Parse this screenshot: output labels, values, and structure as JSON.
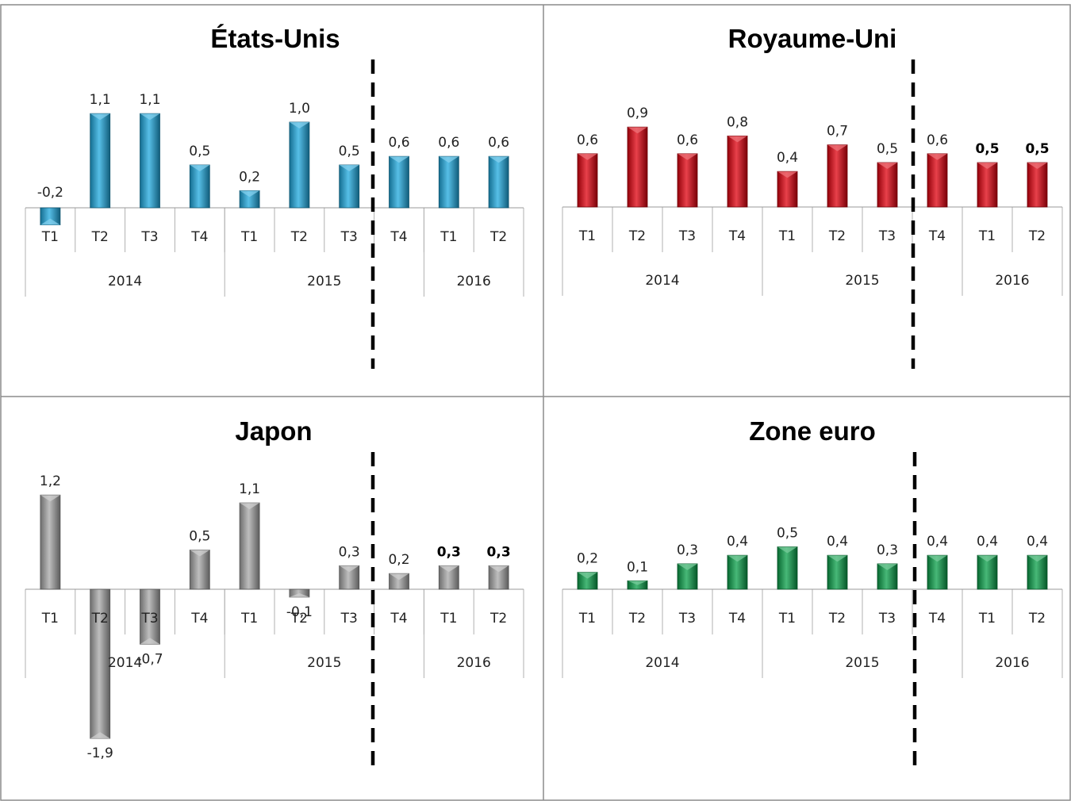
{
  "chart_data": [
    {
      "type": "bar",
      "title": "États-Unis",
      "color": "#1fa9df",
      "categories": [
        "T1",
        "T2",
        "T3",
        "T4",
        "T1",
        "T2",
        "T3",
        "T4",
        "T1",
        "T2"
      ],
      "years": [
        {
          "label": "2014",
          "span": 4
        },
        {
          "label": "2015",
          "span": 4
        },
        {
          "label": "2016",
          "span": 2
        }
      ],
      "values": [
        -0.2,
        1.1,
        1.1,
        0.5,
        0.2,
        1.0,
        0.5,
        0.6,
        0.6,
        0.6
      ],
      "labels": [
        "-0,2",
        "1,1",
        "1,1",
        "0,5",
        "0,2",
        "1,0",
        "0,5",
        "0,6",
        "0,6",
        "0,6"
      ],
      "bold_labels": [],
      "forecast_separator_after": 7
    },
    {
      "type": "bar",
      "title": "Royaume-Uni",
      "color": "#e0000e",
      "categories": [
        "T1",
        "T2",
        "T3",
        "T4",
        "T1",
        "T2",
        "T3",
        "T4",
        "T1",
        "T2"
      ],
      "years": [
        {
          "label": "2014",
          "span": 4
        },
        {
          "label": "2015",
          "span": 4
        },
        {
          "label": "2016",
          "span": 2
        }
      ],
      "values": [
        0.6,
        0.9,
        0.6,
        0.8,
        0.4,
        0.7,
        0.5,
        0.6,
        0.5,
        0.5
      ],
      "labels": [
        "0,6",
        "0,9",
        "0,6",
        "0,8",
        "0,4",
        "0,7",
        "0,5",
        "0,6",
        "0,5",
        "0,5"
      ],
      "bold_labels": [
        8,
        9
      ],
      "forecast_separator_after": 7
    },
    {
      "type": "bar",
      "title": "Japon",
      "color": "#a8a8a8",
      "categories": [
        "T1",
        "T2",
        "T3",
        "T4",
        "T1",
        "T2",
        "T3",
        "T4",
        "T1",
        "T2"
      ],
      "years": [
        {
          "label": "2014",
          "span": 4
        },
        {
          "label": "2015",
          "span": 4
        },
        {
          "label": "2016",
          "span": 2
        }
      ],
      "values": [
        1.2,
        -1.9,
        -0.7,
        0.5,
        1.1,
        -0.1,
        0.3,
        0.2,
        0.3,
        0.3
      ],
      "labels": [
        "1,2",
        "-1,9",
        "-0,7",
        "0,5",
        "1,1",
        "-0,1",
        "0,3",
        "0,2",
        "0,3",
        "0,3"
      ],
      "bold_labels": [
        8,
        9
      ],
      "forecast_separator_after": 7
    },
    {
      "type": "bar",
      "title": "Zone euro",
      "color": "#0aa04a",
      "categories": [
        "T1",
        "T2",
        "T3",
        "T4",
        "T1",
        "T2",
        "T3",
        "T4",
        "T1",
        "T2"
      ],
      "years": [
        {
          "label": "2014",
          "span": 4
        },
        {
          "label": "2015",
          "span": 4
        },
        {
          "label": "2016",
          "span": 2
        }
      ],
      "values": [
        0.2,
        0.1,
        0.3,
        0.4,
        0.5,
        0.4,
        0.3,
        0.4,
        0.4,
        0.4
      ],
      "labels": [
        "0,2",
        "0,1",
        "0,3",
        "0,4",
        "0,5",
        "0,4",
        "0,3",
        "0,4",
        "0,4",
        "0,4"
      ],
      "bold_labels": [],
      "forecast_separator_after": 7
    }
  ]
}
